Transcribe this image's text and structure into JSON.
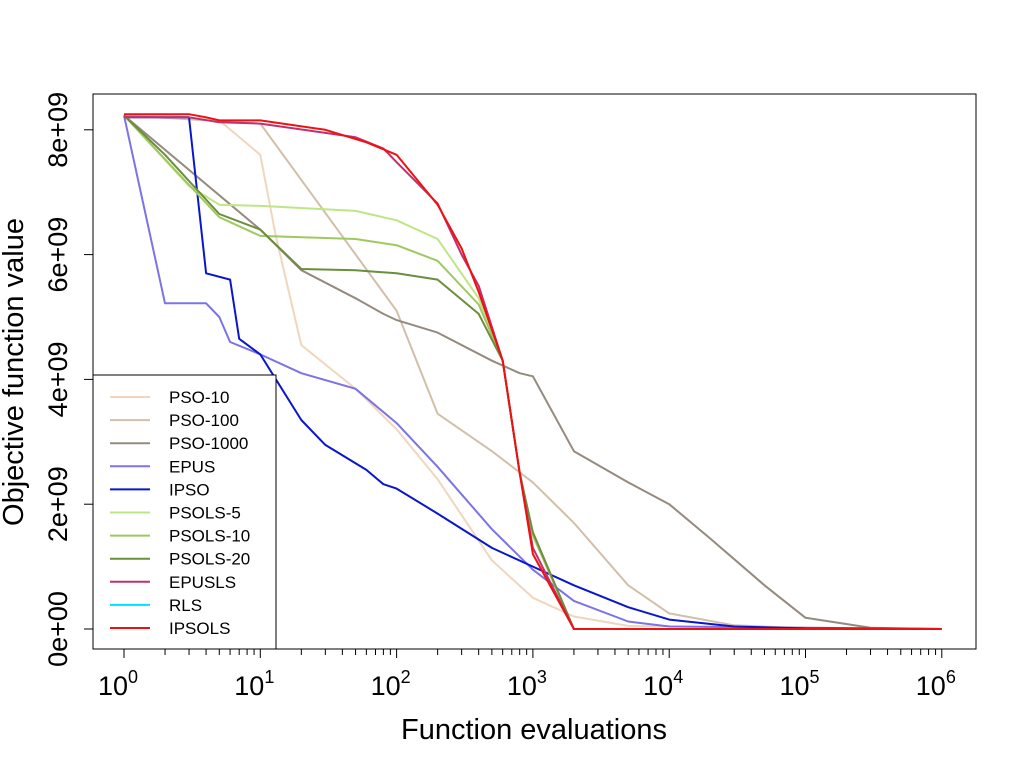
{
  "chart_data": {
    "type": "line",
    "title": "",
    "xlabel": "Function evaluations",
    "ylabel": "Objective function value",
    "xscale": "log10",
    "xlim": [
      0.7,
      1400000
    ],
    "ylim": [
      -300000000,
      8550000000
    ],
    "x_ticks": [
      {
        "base": "10",
        "exp": "0"
      },
      {
        "base": "10",
        "exp": "1"
      },
      {
        "base": "10",
        "exp": "2"
      },
      {
        "base": "10",
        "exp": "3"
      },
      {
        "base": "10",
        "exp": "4"
      },
      {
        "base": "10",
        "exp": "5"
      },
      {
        "base": "10",
        "exp": "6"
      }
    ],
    "y_ticks": [
      "0e+00",
      "2e+09",
      "4e+09",
      "6e+09",
      "8e+09"
    ],
    "y_tick_values": [
      0,
      2000000000,
      4000000000,
      6000000000,
      8000000000
    ],
    "legend_position": "bottom-left",
    "series": [
      {
        "name": "PSO-10",
        "color": "#f0d6bd",
        "points": [
          [
            1,
            8230000000.0
          ],
          [
            2,
            8230000000.0
          ],
          [
            5,
            8150000000.0
          ],
          [
            10,
            7600000000.0
          ],
          [
            13,
            6300000000.0
          ],
          [
            20,
            4550000000.0
          ],
          [
            50,
            3850000000.0
          ],
          [
            100,
            3200000000.0
          ],
          [
            200,
            2400000000.0
          ],
          [
            500,
            1100000000.0
          ],
          [
            1000,
            500000000.0
          ],
          [
            2000,
            200000000.0
          ],
          [
            5000,
            50000000.0
          ],
          [
            1000000,
            0.0
          ]
        ]
      },
      {
        "name": "PSO-100",
        "color": "#d2bfaa",
        "points": [
          [
            1,
            8230000000.0
          ],
          [
            10,
            8100000000.0
          ],
          [
            100,
            5100000000.0
          ],
          [
            200,
            3450000000.0
          ],
          [
            500,
            2850000000.0
          ],
          [
            1000,
            2350000000.0
          ],
          [
            2000,
            1700000000.0
          ],
          [
            5000,
            700000000.0
          ],
          [
            10000,
            250000000.0
          ],
          [
            30000,
            60000000.0
          ],
          [
            100000,
            10000000.0
          ],
          [
            1000000,
            0.0
          ]
        ]
      },
      {
        "name": "PSO-1000",
        "color": "#958a7e",
        "points": [
          [
            1,
            8230000000.0
          ],
          [
            10,
            6400000000.0
          ],
          [
            20,
            5750000000.0
          ],
          [
            50,
            5300000000.0
          ],
          [
            80,
            5050000000.0
          ],
          [
            100,
            4950000000.0
          ],
          [
            200,
            4750000000.0
          ],
          [
            500,
            4300000000.0
          ],
          [
            800,
            4100000000.0
          ],
          [
            1000,
            4050000000.0
          ],
          [
            2000,
            2850000000.0
          ],
          [
            5000,
            2350000000.0
          ],
          [
            10000,
            2000000000.0
          ],
          [
            20000,
            1450000000.0
          ],
          [
            50000,
            700000000.0
          ],
          [
            100000,
            180000000.0
          ],
          [
            300000,
            20000000.0
          ],
          [
            1000000,
            0.0
          ]
        ]
      },
      {
        "name": "EPUS",
        "color": "#7b73e6",
        "points": [
          [
            1,
            8230000000.0
          ],
          [
            2,
            5220000000.0
          ],
          [
            4,
            5220000000.0
          ],
          [
            5,
            5000000000.0
          ],
          [
            6,
            4600000000.0
          ],
          [
            10,
            4400000000.0
          ],
          [
            20,
            4100000000.0
          ],
          [
            50,
            3850000000.0
          ],
          [
            100,
            3300000000.0
          ],
          [
            200,
            2600000000.0
          ],
          [
            500,
            1600000000.0
          ],
          [
            1000,
            950000000.0
          ],
          [
            2000,
            450000000.0
          ],
          [
            5000,
            120000000.0
          ],
          [
            10000,
            40000000.0
          ],
          [
            1000000,
            0.0
          ]
        ]
      },
      {
        "name": "IPSO",
        "color": "#0a16cc",
        "points": [
          [
            1,
            8200000000.0
          ],
          [
            3,
            8200000000.0
          ],
          [
            4,
            5700000000.0
          ],
          [
            6,
            5600000000.0
          ],
          [
            7,
            4650000000.0
          ],
          [
            10,
            4400000000.0
          ],
          [
            20,
            3350000000.0
          ],
          [
            30,
            2950000000.0
          ],
          [
            60,
            2550000000.0
          ],
          [
            80,
            2320000000.0
          ],
          [
            100,
            2250000000.0
          ],
          [
            200,
            1850000000.0
          ],
          [
            500,
            1300000000.0
          ],
          [
            1000,
            1000000000.0
          ],
          [
            2000,
            700000000.0
          ],
          [
            5000,
            350000000.0
          ],
          [
            10000,
            150000000.0
          ],
          [
            30000,
            40000000.0
          ],
          [
            100000,
            10000000.0
          ],
          [
            1000000,
            0.0
          ]
        ]
      },
      {
        "name": "PSOLS-5",
        "color": "#c0e585",
        "points": [
          [
            1,
            8230000000.0
          ],
          [
            3,
            7100000000.0
          ],
          [
            5,
            6800000000.0
          ],
          [
            10,
            6780000000.0
          ],
          [
            50,
            6700000000.0
          ],
          [
            100,
            6550000000.0
          ],
          [
            200,
            6250000000.0
          ],
          [
            400,
            5300000000.0
          ],
          [
            600,
            4300000000.0
          ],
          [
            800,
            2500000000.0
          ],
          [
            1000,
            1500000000.0
          ],
          [
            2000,
            0.0
          ],
          [
            1000000,
            0.0
          ]
        ]
      },
      {
        "name": "PSOLS-10",
        "color": "#a0c860",
        "points": [
          [
            1,
            8230000000.0
          ],
          [
            5,
            6600000000.0
          ],
          [
            10,
            6300000000.0
          ],
          [
            50,
            6250000000.0
          ],
          [
            100,
            6150000000.0
          ],
          [
            200,
            5900000000.0
          ],
          [
            400,
            5200000000.0
          ],
          [
            600,
            4300000000.0
          ],
          [
            800,
            2500000000.0
          ],
          [
            1000,
            1500000000.0
          ],
          [
            2000,
            0.0
          ],
          [
            1000000,
            0.0
          ]
        ]
      },
      {
        "name": "PSOLS-20",
        "color": "#6a8e3c",
        "points": [
          [
            1,
            8230000000.0
          ],
          [
            2,
            7600000000.0
          ],
          [
            5,
            6650000000.0
          ],
          [
            10,
            6400000000.0
          ],
          [
            20,
            5770000000.0
          ],
          [
            50,
            5750000000.0
          ],
          [
            100,
            5700000000.0
          ],
          [
            200,
            5600000000.0
          ],
          [
            400,
            5050000000.0
          ],
          [
            600,
            4300000000.0
          ],
          [
            800,
            2500000000.0
          ],
          [
            1000,
            1550000000.0
          ],
          [
            2000,
            0.0
          ],
          [
            1000000,
            0.0
          ]
        ]
      },
      {
        "name": "EPUSLS",
        "color": "#c2306c",
        "points": [
          [
            1,
            8200000000.0
          ],
          [
            3,
            8200000000.0
          ],
          [
            5,
            8120000000.0
          ],
          [
            10,
            8100000000.0
          ],
          [
            30,
            7950000000.0
          ],
          [
            50,
            7880000000.0
          ],
          [
            80,
            7700000000.0
          ],
          [
            100,
            7480000000.0
          ],
          [
            200,
            6820000000.0
          ],
          [
            300,
            6000000000.0
          ],
          [
            400,
            5500000000.0
          ],
          [
            600,
            4300000000.0
          ],
          [
            800,
            2500000000.0
          ],
          [
            1000,
            1300000000.0
          ],
          [
            2000,
            0.0
          ],
          [
            1000000,
            0.0
          ]
        ]
      },
      {
        "name": "RLS",
        "color": "#00e0ff",
        "points": []
      },
      {
        "name": "IPSOLS",
        "color": "#ee1111",
        "points": [
          [
            1,
            8250000000.0
          ],
          [
            3,
            8250000000.0
          ],
          [
            4,
            8200000000.0
          ],
          [
            5,
            8150000000.0
          ],
          [
            10,
            8150000000.0
          ],
          [
            30,
            8000000000.0
          ],
          [
            60,
            7800000000.0
          ],
          [
            100,
            7600000000.0
          ],
          [
            200,
            6800000000.0
          ],
          [
            300,
            6100000000.0
          ],
          [
            400,
            5400000000.0
          ],
          [
            600,
            4300000000.0
          ],
          [
            800,
            2500000000.0
          ],
          [
            1000,
            1200000000.0
          ],
          [
            2000,
            0.0
          ],
          [
            1000000,
            0.0
          ]
        ]
      }
    ]
  }
}
